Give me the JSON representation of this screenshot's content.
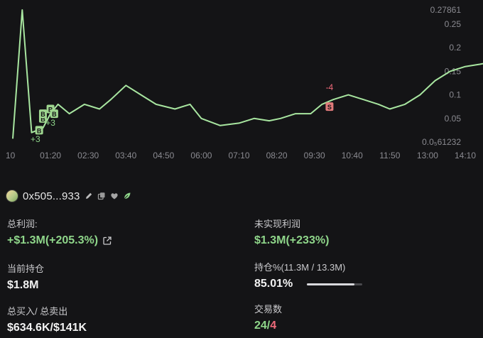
{
  "chart_data": {
    "type": "line",
    "x_ticks": [
      "10",
      "01:20",
      "02:30",
      "03:40",
      "04:50",
      "06:00",
      "07:10",
      "08:20",
      "09:30",
      "10:40",
      "11:50",
      "13:00",
      "14:10"
    ],
    "y_ticks": [
      "0.27861",
      "0.25",
      "0.2",
      "0.15",
      "0.1",
      "0.05",
      "0.0₅61232"
    ],
    "ylim": [
      0,
      0.28
    ],
    "series": [
      {
        "color": "#a8e6a0",
        "values": [
          [
            0,
            0.007
          ],
          [
            0.25,
            0.28
          ],
          [
            0.5,
            0.02
          ],
          [
            0.8,
            0.03
          ],
          [
            1.0,
            0.06
          ],
          [
            1.2,
            0.08
          ],
          [
            1.5,
            0.06
          ],
          [
            1.9,
            0.08
          ],
          [
            2.3,
            0.07
          ],
          [
            2.6,
            0.09
          ],
          [
            3.0,
            0.12
          ],
          [
            3.4,
            0.1
          ],
          [
            3.8,
            0.08
          ],
          [
            4.3,
            0.07
          ],
          [
            4.7,
            0.08
          ],
          [
            5.0,
            0.05
          ],
          [
            5.5,
            0.035
          ],
          [
            6.0,
            0.04
          ],
          [
            6.4,
            0.05
          ],
          [
            6.8,
            0.045
          ],
          [
            7.1,
            0.05
          ],
          [
            7.5,
            0.06
          ],
          [
            7.9,
            0.06
          ],
          [
            8.2,
            0.08
          ],
          [
            8.5,
            0.09
          ],
          [
            8.9,
            0.1
          ],
          [
            9.3,
            0.09
          ],
          [
            9.7,
            0.08
          ],
          [
            10.0,
            0.07
          ],
          [
            10.4,
            0.08
          ],
          [
            10.8,
            0.1
          ],
          [
            11.2,
            0.13
          ],
          [
            11.6,
            0.15
          ],
          [
            12.0,
            0.16
          ],
          [
            12.4,
            0.165
          ],
          [
            12.7,
            0.17
          ],
          [
            13.0,
            0.15
          ],
          [
            13.5,
            0.16
          ],
          [
            13.8,
            0.14
          ],
          [
            14.1,
            0.15
          ]
        ]
      }
    ],
    "markers": [
      {
        "label": "B",
        "x": 0.7,
        "y": 0.025
      },
      {
        "label": "B",
        "x": 0.8,
        "y": 0.05
      },
      {
        "label": "B",
        "x": 0.8,
        "y": 0.06
      },
      {
        "label": "B",
        "x": 1.0,
        "y": 0.07
      },
      {
        "label": "B",
        "x": 1.1,
        "y": 0.06
      },
      {
        "label": "S",
        "x": 8.4,
        "y": 0.075
      }
    ],
    "annotations": [
      {
        "text": "+3",
        "x": 1.0,
        "y": 0.035
      },
      {
        "text": "-4",
        "x": 8.4,
        "y": 0.11
      },
      {
        "text": "+3",
        "x": 0.6,
        "y": 0.0
      }
    ],
    "grid": false,
    "legend": "none"
  },
  "wallet": {
    "address": "0x505...933",
    "icons": [
      "edit-icon",
      "copy-icon",
      "heart-icon",
      "leaf-icon"
    ]
  },
  "stats": {
    "total_pnl_label": "总利润:",
    "total_pnl_value": "+$1.3M(+205.3%)",
    "unrealized_label": "未实现利润",
    "unrealized_value": "$1.3M(+233%)",
    "holding_label": "当前持仓",
    "holding_value": "$1.8M",
    "hold_pct_label": "持仓%(11.3M / 13.3M)",
    "hold_pct_value": "85.01%",
    "hold_pct_fraction": 0.8501,
    "buy_sell_label": "总买入/ 总卖出",
    "buy_sell_value": "$634.6K/$141K",
    "trades_label": "交易数",
    "trades_buys": "24",
    "trades_sep": "/",
    "trades_sells": "4"
  },
  "colors": {
    "line": "#a8e6a0",
    "green": "#8fd68a",
    "red": "#ef6a7a",
    "buy_marker": "#9ed68f",
    "sell_marker": "#e07a7a"
  }
}
